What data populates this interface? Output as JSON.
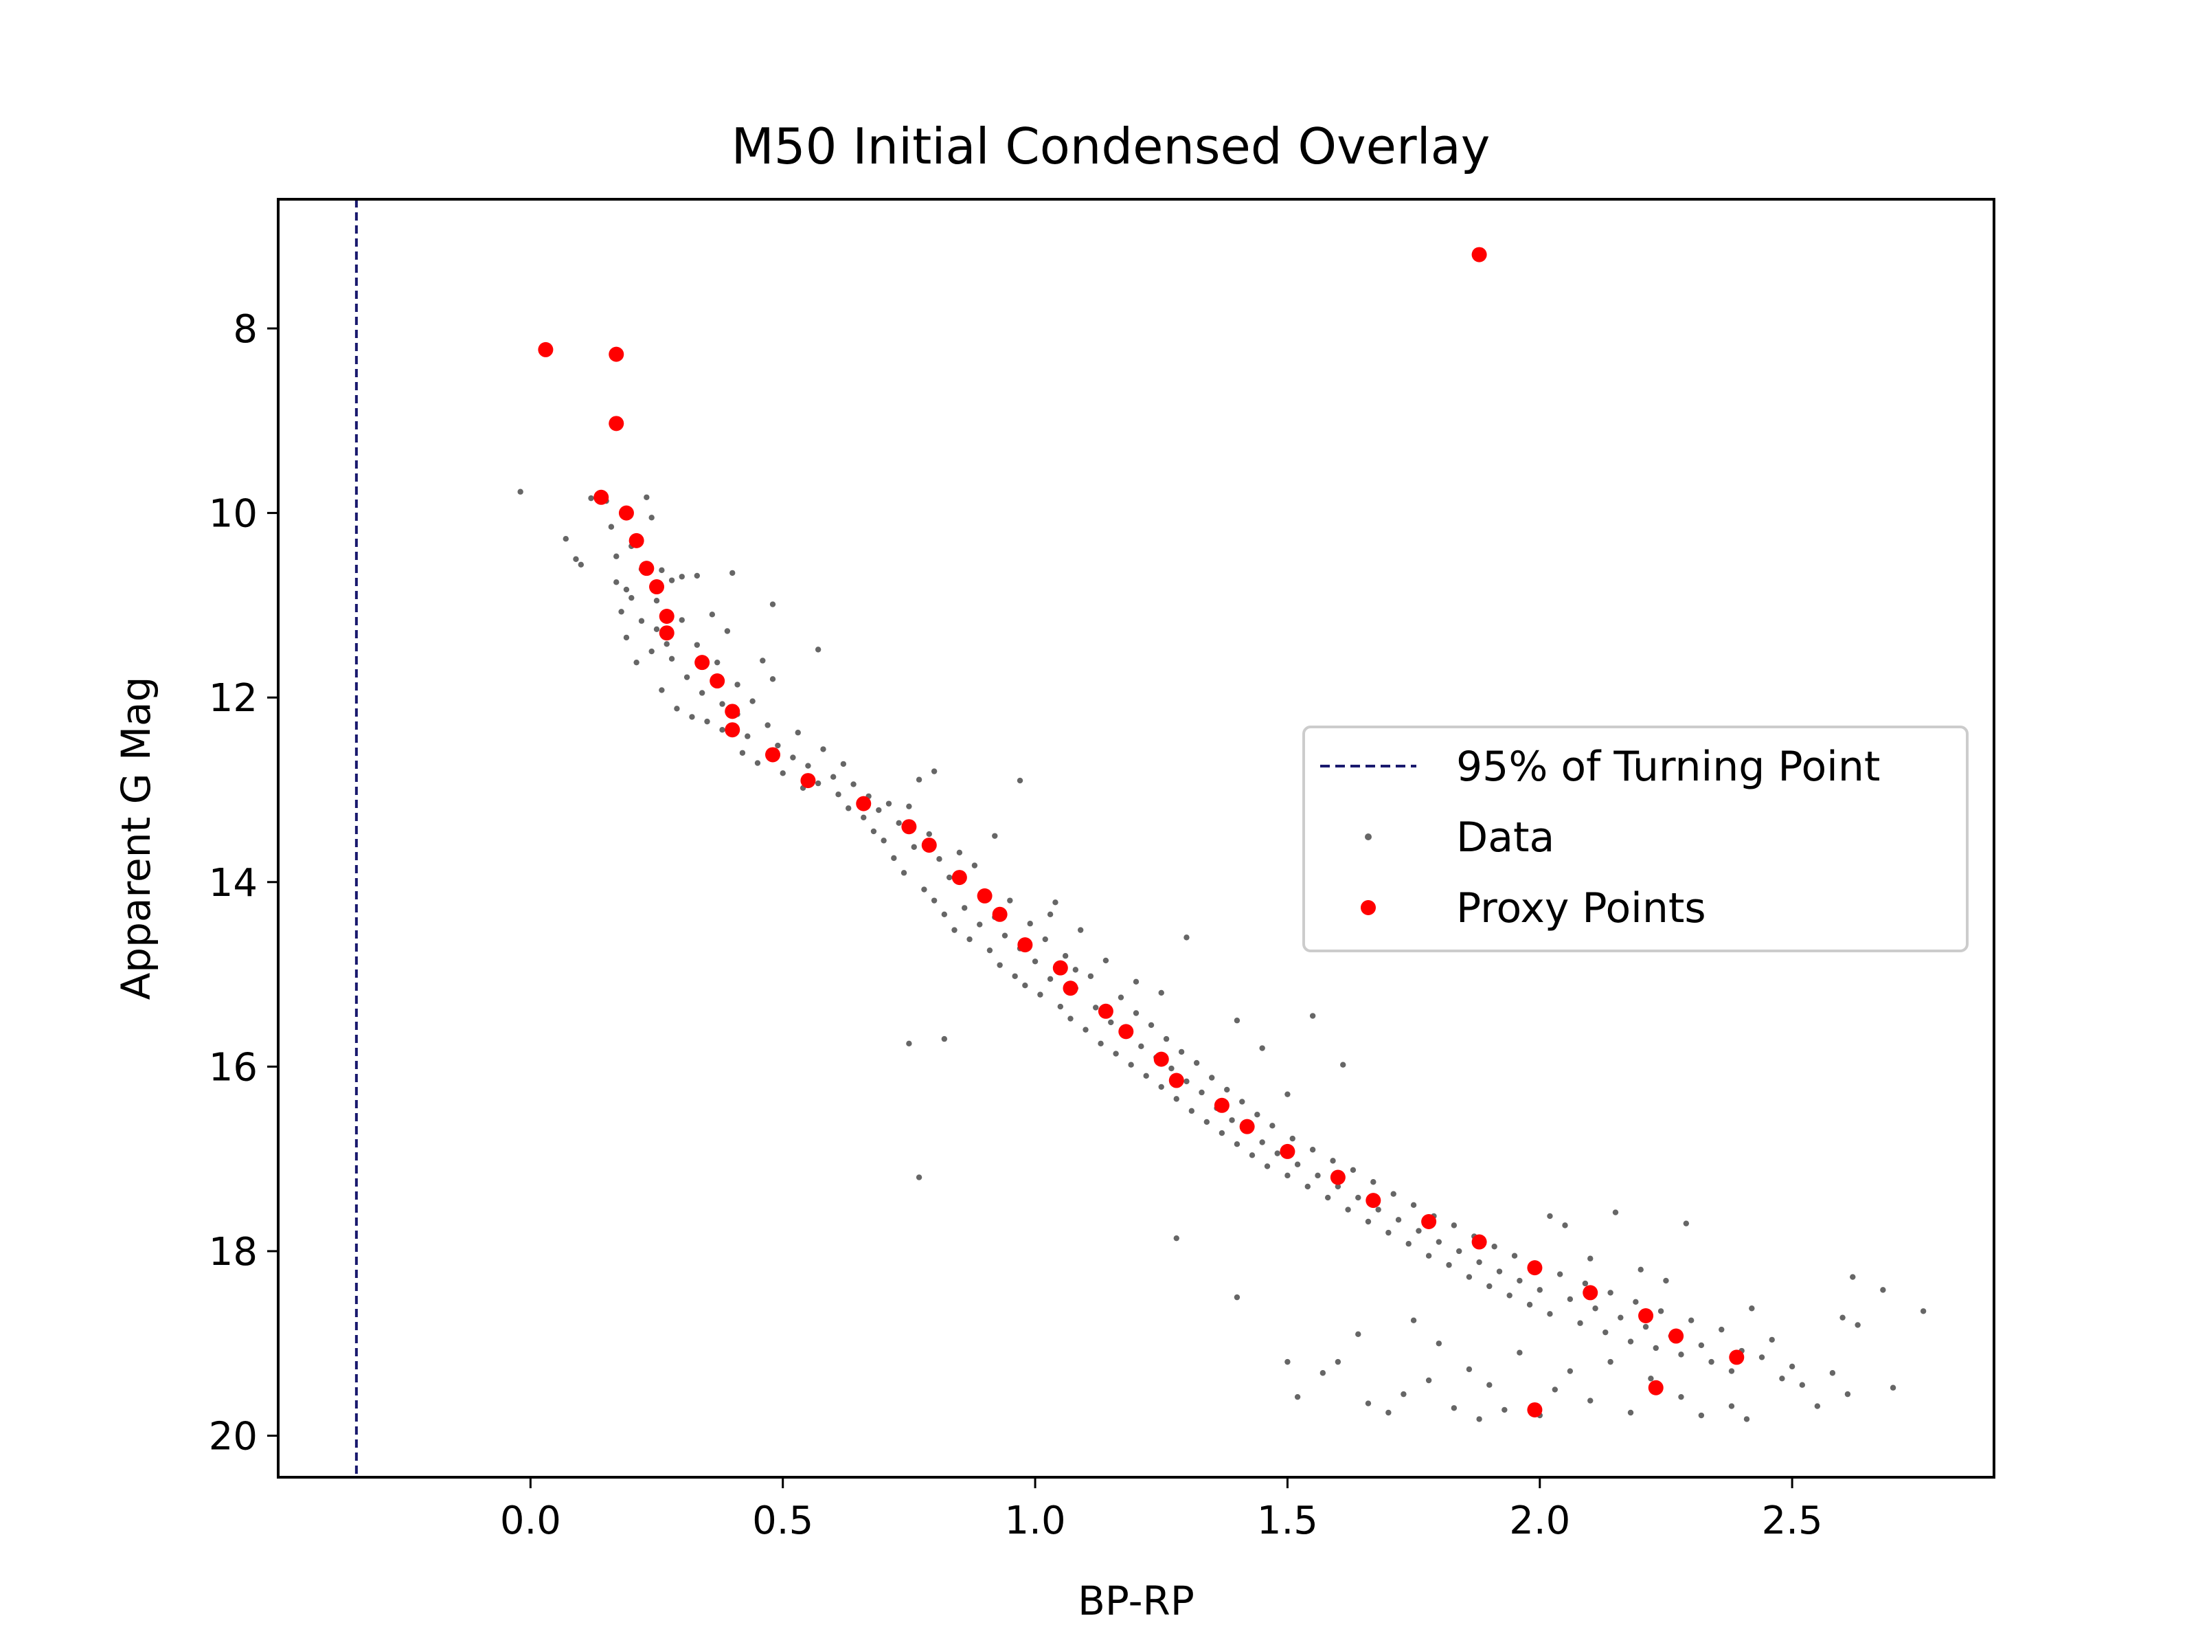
{
  "chart_data": {
    "type": "scatter",
    "title": "M50 Initial Condensed Overlay",
    "xlabel": "BP-RP",
    "ylabel": "Apparent G Mag",
    "xlim": [
      -0.5,
      2.9
    ],
    "ylim": [
      20.45,
      6.6
    ],
    "y_inverted": true,
    "xticks": [
      0.0,
      0.5,
      1.0,
      1.5,
      2.0,
      2.5
    ],
    "xtick_labels": [
      "0.0",
      "0.5",
      "1.0",
      "1.5",
      "2.0",
      "2.5"
    ],
    "yticks": [
      8,
      10,
      12,
      14,
      16,
      18,
      20
    ],
    "ytick_labels": [
      "8",
      "10",
      "12",
      "14",
      "16",
      "18",
      "20"
    ],
    "grid": false,
    "legend_position": "center-right",
    "vline": {
      "name": "95% of Turning Point",
      "x": -0.345,
      "color": "#1a1a6e",
      "style": "dashed"
    },
    "data_series": {
      "name": "Data",
      "color": "#666666",
      "points": [
        [
          -0.02,
          9.77
        ],
        [
          0.07,
          10.28
        ],
        [
          0.09,
          10.5
        ],
        [
          0.1,
          10.56
        ],
        [
          0.12,
          9.84
        ],
        [
          0.15,
          9.87
        ],
        [
          0.16,
          10.15
        ],
        [
          0.17,
          10.47
        ],
        [
          0.17,
          10.75
        ],
        [
          0.18,
          11.07
        ],
        [
          0.19,
          10.83
        ],
        [
          0.19,
          11.35
        ],
        [
          0.2,
          10.36
        ],
        [
          0.2,
          10.92
        ],
        [
          0.21,
          11.62
        ],
        [
          0.22,
          10.61
        ],
        [
          0.22,
          11.17
        ],
        [
          0.23,
          9.83
        ],
        [
          0.24,
          10.05
        ],
        [
          0.24,
          11.5
        ],
        [
          0.25,
          10.95
        ],
        [
          0.25,
          11.26
        ],
        [
          0.26,
          10.62
        ],
        [
          0.26,
          11.92
        ],
        [
          0.27,
          11.42
        ],
        [
          0.28,
          10.73
        ],
        [
          0.28,
          11.58
        ],
        [
          0.29,
          12.12
        ],
        [
          0.3,
          10.69
        ],
        [
          0.3,
          11.16
        ],
        [
          0.31,
          11.78
        ],
        [
          0.32,
          12.21
        ],
        [
          0.33,
          10.68
        ],
        [
          0.33,
          11.43
        ],
        [
          0.34,
          11.95
        ],
        [
          0.35,
          12.26
        ],
        [
          0.36,
          11.1
        ],
        [
          0.37,
          11.62
        ],
        [
          0.38,
          12.07
        ],
        [
          0.38,
          12.35
        ],
        [
          0.39,
          11.28
        ],
        [
          0.4,
          10.65
        ],
        [
          0.41,
          11.86
        ],
        [
          0.41,
          12.18
        ],
        [
          0.42,
          12.6
        ],
        [
          0.43,
          12.42
        ],
        [
          0.44,
          12.04
        ],
        [
          0.45,
          12.71
        ],
        [
          0.46,
          11.6
        ],
        [
          0.47,
          12.3
        ],
        [
          0.48,
          10.99
        ],
        [
          0.48,
          11.8
        ],
        [
          0.49,
          12.52
        ],
        [
          0.5,
          12.82
        ],
        [
          0.52,
          12.65
        ],
        [
          0.53,
          12.38
        ],
        [
          0.54,
          12.98
        ],
        [
          0.55,
          12.74
        ],
        [
          0.57,
          11.48
        ],
        [
          0.57,
          12.93
        ],
        [
          0.58,
          12.56
        ],
        [
          0.6,
          12.86
        ],
        [
          0.61,
          13.05
        ],
        [
          0.62,
          12.72
        ],
        [
          0.63,
          13.2
        ],
        [
          0.64,
          12.94
        ],
        [
          0.66,
          13.3
        ],
        [
          0.67,
          13.07
        ],
        [
          0.68,
          13.45
        ],
        [
          0.69,
          13.22
        ],
        [
          0.7,
          13.55
        ],
        [
          0.71,
          13.15
        ],
        [
          0.72,
          13.74
        ],
        [
          0.73,
          13.36
        ],
        [
          0.74,
          13.9
        ],
        [
          0.75,
          13.18
        ],
        [
          0.76,
          13.62
        ],
        [
          0.77,
          12.89
        ],
        [
          0.78,
          14.08
        ],
        [
          0.79,
          13.48
        ],
        [
          0.8,
          12.8
        ],
        [
          0.8,
          14.2
        ],
        [
          0.81,
          13.75
        ],
        [
          0.82,
          14.35
        ],
        [
          0.83,
          13.95
        ],
        [
          0.84,
          14.52
        ],
        [
          0.85,
          13.68
        ],
        [
          0.86,
          14.28
        ],
        [
          0.87,
          14.62
        ],
        [
          0.88,
          13.82
        ],
        [
          0.89,
          14.46
        ],
        [
          0.9,
          14.12
        ],
        [
          0.91,
          14.74
        ],
        [
          0.92,
          13.5
        ],
        [
          0.92,
          14.38
        ],
        [
          0.93,
          14.9
        ],
        [
          0.94,
          14.58
        ],
        [
          0.95,
          14.2
        ],
        [
          0.96,
          15.02
        ],
        [
          0.97,
          14.72
        ],
        [
          0.98,
          15.12
        ],
        [
          0.99,
          14.45
        ],
        [
          1.0,
          14.86
        ],
        [
          1.01,
          15.22
        ],
        [
          1.02,
          14.62
        ],
        [
          1.03,
          15.05
        ],
        [
          1.04,
          14.22
        ],
        [
          1.05,
          15.35
        ],
        [
          1.06,
          14.8
        ],
        [
          1.07,
          15.48
        ],
        [
          1.08,
          15.15
        ],
        [
          1.09,
          14.52
        ],
        [
          1.1,
          15.6
        ],
        [
          1.11,
          15.02
        ],
        [
          1.12,
          15.36
        ],
        [
          1.13,
          15.75
        ],
        [
          1.14,
          14.85
        ],
        [
          1.15,
          15.52
        ],
        [
          1.16,
          15.86
        ],
        [
          1.17,
          15.25
        ],
        [
          1.18,
          15.65
        ],
        [
          1.19,
          15.98
        ],
        [
          1.2,
          15.42
        ],
        [
          1.21,
          15.78
        ],
        [
          1.22,
          16.1
        ],
        [
          1.23,
          15.55
        ],
        [
          1.24,
          15.9
        ],
        [
          1.25,
          16.22
        ],
        [
          1.26,
          15.7
        ],
        [
          1.27,
          16.02
        ],
        [
          1.28,
          16.35
        ],
        [
          1.29,
          15.84
        ],
        [
          1.3,
          16.16
        ],
        [
          1.31,
          16.48
        ],
        [
          1.32,
          15.96
        ],
        [
          1.33,
          16.28
        ],
        [
          1.34,
          16.6
        ],
        [
          1.35,
          16.12
        ],
        [
          1.36,
          16.45
        ],
        [
          1.37,
          16.72
        ],
        [
          1.38,
          16.25
        ],
        [
          1.39,
          16.58
        ],
        [
          1.4,
          16.84
        ],
        [
          1.41,
          16.38
        ],
        [
          1.42,
          16.7
        ],
        [
          1.43,
          16.96
        ],
        [
          1.44,
          16.52
        ],
        [
          1.45,
          16.82
        ],
        [
          1.46,
          17.08
        ],
        [
          1.47,
          16.64
        ],
        [
          1.48,
          16.94
        ],
        [
          1.5,
          17.18
        ],
        [
          1.51,
          16.78
        ],
        [
          1.52,
          17.06
        ],
        [
          1.54,
          17.3
        ],
        [
          1.55,
          16.9
        ],
        [
          1.56,
          17.18
        ],
        [
          1.58,
          17.42
        ],
        [
          1.59,
          17.02
        ],
        [
          1.6,
          17.3
        ],
        [
          1.62,
          17.55
        ],
        [
          1.63,
          17.12
        ],
        [
          1.64,
          17.42
        ],
        [
          1.66,
          17.68
        ],
        [
          1.67,
          17.25
        ],
        [
          1.68,
          17.55
        ],
        [
          1.7,
          17.8
        ],
        [
          1.71,
          17.38
        ],
        [
          1.72,
          17.66
        ],
        [
          1.74,
          17.92
        ],
        [
          1.75,
          17.5
        ],
        [
          1.76,
          17.78
        ],
        [
          1.78,
          18.05
        ],
        [
          1.79,
          17.62
        ],
        [
          1.8,
          17.9
        ],
        [
          1.82,
          18.15
        ],
        [
          1.83,
          17.72
        ],
        [
          1.84,
          18.0
        ],
        [
          1.86,
          18.28
        ],
        [
          1.87,
          17.84
        ],
        [
          1.88,
          18.12
        ],
        [
          1.9,
          18.38
        ],
        [
          1.91,
          17.95
        ],
        [
          1.92,
          18.22
        ],
        [
          1.94,
          18.48
        ],
        [
          1.95,
          18.05
        ],
        [
          1.96,
          18.32
        ],
        [
          1.98,
          18.58
        ],
        [
          1.99,
          18.15
        ],
        [
          2.0,
          18.42
        ],
        [
          2.02,
          17.62
        ],
        [
          2.02,
          18.68
        ],
        [
          2.04,
          18.25
        ],
        [
          2.05,
          17.72
        ],
        [
          2.06,
          18.52
        ],
        [
          2.08,
          18.78
        ],
        [
          2.09,
          18.35
        ],
        [
          2.1,
          18.08
        ],
        [
          2.11,
          18.62
        ],
        [
          2.13,
          18.88
        ],
        [
          2.14,
          18.45
        ],
        [
          2.15,
          17.58
        ],
        [
          2.16,
          18.72
        ],
        [
          2.18,
          18.98
        ],
        [
          2.19,
          18.55
        ],
        [
          2.2,
          18.2
        ],
        [
          2.21,
          18.82
        ],
        [
          2.23,
          19.05
        ],
        [
          2.24,
          18.65
        ],
        [
          2.25,
          18.32
        ],
        [
          2.26,
          18.92
        ],
        [
          2.28,
          19.12
        ],
        [
          2.29,
          17.7
        ],
        [
          2.3,
          18.75
        ],
        [
          2.32,
          19.02
        ],
        [
          2.34,
          19.2
        ],
        [
          2.36,
          18.85
        ],
        [
          2.38,
          19.3
        ],
        [
          2.4,
          19.08
        ],
        [
          2.42,
          18.62
        ],
        [
          2.44,
          19.15
        ],
        [
          2.46,
          18.96
        ],
        [
          2.48,
          19.38
        ],
        [
          2.5,
          19.25
        ],
        [
          2.52,
          19.45
        ],
        [
          2.55,
          19.68
        ],
        [
          2.58,
          19.32
        ],
        [
          2.6,
          18.72
        ],
        [
          2.61,
          19.55
        ],
        [
          2.62,
          18.28
        ],
        [
          2.63,
          18.8
        ],
        [
          2.68,
          18.42
        ],
        [
          2.7,
          19.48
        ],
        [
          2.76,
          18.65
        ],
        [
          0.75,
          15.75
        ],
        [
          0.82,
          15.7
        ],
        [
          0.77,
          17.2
        ],
        [
          1.28,
          17.86
        ],
        [
          1.4,
          18.5
        ],
        [
          1.5,
          16.3
        ],
        [
          1.55,
          15.45
        ],
        [
          1.61,
          15.98
        ],
        [
          1.5,
          19.2
        ],
        [
          1.52,
          19.58
        ],
        [
          1.57,
          19.32
        ],
        [
          1.6,
          19.2
        ],
        [
          1.64,
          18.9
        ],
        [
          1.66,
          19.65
        ],
        [
          1.7,
          19.75
        ],
        [
          1.73,
          19.55
        ],
        [
          1.75,
          18.75
        ],
        [
          1.78,
          19.4
        ],
        [
          1.8,
          19.0
        ],
        [
          1.83,
          19.7
        ],
        [
          1.86,
          19.28
        ],
        [
          1.88,
          19.82
        ],
        [
          1.9,
          19.45
        ],
        [
          1.93,
          19.72
        ],
        [
          1.96,
          19.1
        ],
        [
          2.0,
          19.78
        ],
        [
          2.03,
          19.5
        ],
        [
          2.06,
          19.3
        ],
        [
          2.1,
          19.62
        ],
        [
          2.14,
          19.2
        ],
        [
          2.18,
          19.75
        ],
        [
          2.22,
          19.38
        ],
        [
          2.28,
          19.58
        ],
        [
          2.32,
          19.78
        ],
        [
          2.38,
          19.68
        ],
        [
          2.41,
          19.82
        ],
        [
          0.97,
          12.9
        ],
        [
          1.03,
          14.35
        ],
        [
          1.08,
          14.95
        ],
        [
          1.2,
          15.08
        ],
        [
          1.3,
          14.6
        ],
        [
          1.25,
          15.2
        ],
        [
          1.4,
          15.5
        ],
        [
          1.45,
          15.8
        ]
      ]
    },
    "proxy_series": {
      "name": "Proxy Points",
      "color": "#ff0000",
      "points": [
        [
          0.03,
          8.23
        ],
        [
          0.17,
          8.28
        ],
        [
          0.17,
          9.03
        ],
        [
          1.88,
          7.2
        ],
        [
          0.14,
          9.83
        ],
        [
          0.19,
          10.0
        ],
        [
          0.21,
          10.3
        ],
        [
          0.23,
          10.6
        ],
        [
          0.25,
          10.8
        ],
        [
          0.27,
          11.12
        ],
        [
          0.27,
          11.3
        ],
        [
          0.34,
          11.62
        ],
        [
          0.37,
          11.82
        ],
        [
          0.4,
          12.15
        ],
        [
          0.4,
          12.35
        ],
        [
          0.48,
          12.62
        ],
        [
          0.55,
          12.9
        ],
        [
          0.66,
          13.15
        ],
        [
          0.75,
          13.4
        ],
        [
          0.79,
          13.6
        ],
        [
          0.85,
          13.95
        ],
        [
          0.9,
          14.15
        ],
        [
          0.93,
          14.35
        ],
        [
          0.98,
          14.68
        ],
        [
          1.05,
          14.93
        ],
        [
          1.07,
          15.15
        ],
        [
          1.14,
          15.4
        ],
        [
          1.18,
          15.62
        ],
        [
          1.25,
          15.92
        ],
        [
          1.28,
          16.15
        ],
        [
          1.37,
          16.42
        ],
        [
          1.42,
          16.65
        ],
        [
          1.5,
          16.92
        ],
        [
          1.6,
          17.2
        ],
        [
          1.67,
          17.45
        ],
        [
          1.78,
          17.68
        ],
        [
          1.88,
          17.9
        ],
        [
          1.99,
          18.18
        ],
        [
          2.1,
          18.45
        ],
        [
          2.21,
          18.7
        ],
        [
          2.27,
          18.92
        ],
        [
          2.39,
          19.15
        ],
        [
          1.99,
          19.72
        ],
        [
          2.23,
          19.48
        ]
      ]
    }
  }
}
